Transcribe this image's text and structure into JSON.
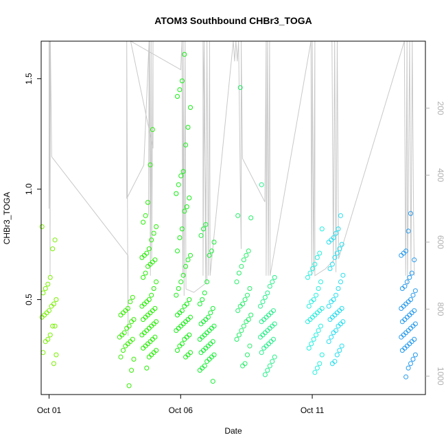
{
  "chart_data": {
    "type": "scatter",
    "title": "ATOM3 Southbound CHBr3_TOGA",
    "xlabel": "Date",
    "ylabel": "CHBr3_TOGA",
    "x_ticks": [
      "Oct 01",
      "Oct 06",
      "Oct 11"
    ],
    "x_tick_days": [
      1,
      6,
      11
    ],
    "xlim": [
      0.7,
      15.3
    ],
    "y_ticks": [
      "0.5",
      "1.0",
      "1.5"
    ],
    "y_tick_values": [
      0.5,
      1.0,
      1.5
    ],
    "ylim": [
      0.07,
      1.67
    ],
    "y2_ticks": [
      "200",
      "400",
      "600",
      "800",
      "1000"
    ],
    "y2_tick_values": [
      200,
      400,
      600,
      800,
      1000
    ],
    "y2lim": [
      1055,
      0
    ],
    "y2_tick_color": "#b0b0b0",
    "pressure_line_color": "#c8c8c8",
    "grid": false,
    "legend": "none",
    "point_groups": [
      {
        "color": "#77f000",
        "day": 1.0,
        "values": [
          0.83,
          0.77,
          0.73,
          0.6,
          0.57,
          0.55,
          0.53,
          0.5,
          0.48,
          0.47,
          0.45,
          0.44,
          0.43,
          0.42,
          0.38,
          0.38,
          0.34,
          0.32,
          0.31,
          0.26,
          0.25,
          0.21
        ]
      },
      {
        "color": "#33ee00",
        "day": 3.95,
        "values": [
          0.51,
          0.49,
          0.46,
          0.45,
          0.44,
          0.43,
          0.41,
          0.4,
          0.38,
          0.37,
          0.35,
          0.34,
          0.33,
          0.32,
          0.31,
          0.3,
          0.29,
          0.27,
          0.24,
          0.23,
          0.18,
          0.11
        ]
      },
      {
        "color": "#22ee00",
        "day": 4.8,
        "values": [
          1.27,
          1.11,
          0.94,
          0.88,
          0.85,
          0.83,
          0.8,
          0.77,
          0.73,
          0.71,
          0.7,
          0.69,
          0.68,
          0.67,
          0.66,
          0.65,
          0.62,
          0.6,
          0.58,
          0.55,
          0.52,
          0.5,
          0.49,
          0.48,
          0.47,
          0.46,
          0.45,
          0.44,
          0.43,
          0.42,
          0.41,
          0.4,
          0.39,
          0.38,
          0.37,
          0.36,
          0.35,
          0.34,
          0.33,
          0.32,
          0.31,
          0.3,
          0.29,
          0.28,
          0.27,
          0.26,
          0.25,
          0.24,
          0.19
        ]
      },
      {
        "color": "#11ee10",
        "day": 6.1,
        "values": [
          1.61,
          1.49,
          1.45,
          1.42,
          1.37,
          1.28,
          1.2,
          1.08,
          1.06,
          1.02,
          0.98,
          0.96,
          0.92,
          0.9,
          0.82,
          0.78,
          0.72,
          0.7,
          0.68,
          0.65,
          0.61,
          0.58,
          0.55,
          0.52,
          0.5,
          0.48,
          0.47,
          0.45,
          0.44,
          0.43,
          0.42,
          0.41,
          0.4,
          0.39,
          0.38,
          0.37,
          0.36,
          0.34,
          0.33,
          0.32,
          0.3,
          0.29,
          0.27,
          0.26,
          0.25,
          0.24
        ]
      },
      {
        "color": "#11ee30",
        "day": 7.0,
        "values": [
          0.84,
          0.82,
          0.79,
          0.76,
          0.72,
          0.7,
          0.58,
          0.53,
          0.5,
          0.48,
          0.46,
          0.44,
          0.42,
          0.41,
          0.4,
          0.39,
          0.38,
          0.37,
          0.36,
          0.35,
          0.34,
          0.33,
          0.32,
          0.31,
          0.3,
          0.29,
          0.28,
          0.27,
          0.26,
          0.25,
          0.24,
          0.23,
          0.22,
          0.2,
          0.19,
          0.18,
          0.13
        ]
      },
      {
        "color": "#22ee66",
        "day": 8.4,
        "values": [
          1.46,
          0.88,
          0.87,
          0.72,
          0.7,
          0.68,
          0.65,
          0.62,
          0.58,
          0.55,
          0.52,
          0.5,
          0.48,
          0.47,
          0.45,
          0.43,
          0.41,
          0.4,
          0.38,
          0.36,
          0.34,
          0.32,
          0.29,
          0.25,
          0.21,
          0.2
        ]
      },
      {
        "color": "#22ee88",
        "day": 9.3,
        "values": [
          1.02,
          0.6,
          0.58,
          0.56,
          0.53,
          0.51,
          0.49,
          0.47,
          0.45,
          0.44,
          0.43,
          0.42,
          0.41,
          0.4,
          0.39,
          0.38,
          0.37,
          0.36,
          0.35,
          0.34,
          0.33,
          0.32,
          0.31,
          0.3,
          0.29,
          0.28,
          0.26,
          0.24,
          0.22,
          0.2,
          0.18,
          0.16
        ]
      },
      {
        "color": "#22eedd",
        "day": 11.1,
        "values": [
          0.82,
          0.71,
          0.69,
          0.66,
          0.64,
          0.62,
          0.6,
          0.58,
          0.55,
          0.52,
          0.5,
          0.49,
          0.47,
          0.46,
          0.45,
          0.44,
          0.43,
          0.42,
          0.41,
          0.4,
          0.38,
          0.36,
          0.34,
          0.32,
          0.3,
          0.28,
          0.25,
          0.21,
          0.19,
          0.17
        ]
      },
      {
        "color": "#22ddee",
        "day": 11.9,
        "values": [
          0.88,
          0.82,
          0.8,
          0.78,
          0.77,
          0.76,
          0.75,
          0.73,
          0.71,
          0.69,
          0.66,
          0.64,
          0.61,
          0.58,
          0.55,
          0.52,
          0.5,
          0.49,
          0.47,
          0.46,
          0.45,
          0.44,
          0.43,
          0.42,
          0.41,
          0.4,
          0.39,
          0.38,
          0.36,
          0.35,
          0.33,
          0.31,
          0.29,
          0.27,
          0.25,
          0.22,
          0.21
        ]
      },
      {
        "color": "#2299ee",
        "day": 14.65,
        "values": [
          0.89,
          0.81,
          0.72,
          0.71,
          0.7,
          0.68,
          0.62,
          0.6,
          0.58,
          0.56,
          0.55,
          0.54,
          0.52,
          0.5,
          0.49,
          0.48,
          0.47,
          0.46,
          0.45,
          0.44,
          0.43,
          0.42,
          0.41,
          0.4,
          0.39,
          0.38,
          0.37,
          0.36,
          0.35,
          0.34,
          0.33,
          0.32,
          0.31,
          0.3,
          0.29,
          0.28,
          0.27,
          0.25,
          0.23,
          0.21,
          0.19,
          0.15
        ]
      }
    ],
    "pressure_series": [
      {
        "d": 1.0,
        "p": 0
      },
      {
        "d": 1.0,
        "p": 500
      },
      {
        "d": 1.02,
        "p": 0
      },
      {
        "d": 1.04,
        "p": 700
      },
      {
        "d": 1.05,
        "p": 0
      },
      {
        "d": 1.1,
        "p": 345
      },
      {
        "d": 4.0,
        "p": 640
      },
      {
        "d": 4.0,
        "p": 880
      },
      {
        "d": 3.95,
        "p": 0
      },
      {
        "d": 3.95,
        "p": 470
      },
      {
        "d": 4.6,
        "p": 370
      },
      {
        "d": 4.8,
        "p": 0
      },
      {
        "d": 4.78,
        "p": 520
      },
      {
        "d": 4.82,
        "p": 0
      },
      {
        "d": 4.85,
        "p": 700
      },
      {
        "d": 4.88,
        "p": 0
      },
      {
        "d": 4.9,
        "p": 650
      },
      {
        "d": 4.95,
        "p": 0
      },
      {
        "d": 4.95,
        "p": 320
      },
      {
        "d": 4.1,
        "p": 0
      },
      {
        "d": 6.0,
        "p": 85
      },
      {
        "d": 6.05,
        "p": 0
      },
      {
        "d": 6.08,
        "p": 700
      },
      {
        "d": 6.1,
        "p": 0
      },
      {
        "d": 6.13,
        "p": 760
      },
      {
        "d": 6.17,
        "p": 0
      },
      {
        "d": 6.2,
        "p": 740
      },
      {
        "d": 6.5,
        "p": 750
      },
      {
        "d": 7.0,
        "p": 720
      },
      {
        "d": 6.85,
        "p": 0
      },
      {
        "d": 6.85,
        "p": 155
      },
      {
        "d": 6.85,
        "p": 700
      },
      {
        "d": 6.9,
        "p": 0
      },
      {
        "d": 6.95,
        "p": 720
      },
      {
        "d": 7.0,
        "p": 0
      },
      {
        "d": 7.05,
        "p": 700
      },
      {
        "d": 7.1,
        "p": 0
      },
      {
        "d": 7.12,
        "p": 700
      },
      {
        "d": 8.0,
        "p": 0
      },
      {
        "d": 8.05,
        "p": 60
      },
      {
        "d": 8.1,
        "p": 0
      },
      {
        "d": 8.15,
        "p": 60
      },
      {
        "d": 8.2,
        "p": 0
      },
      {
        "d": 8.25,
        "p": 320
      },
      {
        "d": 8.3,
        "p": 620
      },
      {
        "d": 8.3,
        "p": 0
      },
      {
        "d": 8.35,
        "p": 350
      },
      {
        "d": 9.2,
        "p": 480
      },
      {
        "d": 9.25,
        "p": 0
      },
      {
        "d": 9.25,
        "p": 700
      },
      {
        "d": 9.3,
        "p": 0
      },
      {
        "d": 9.33,
        "p": 700
      },
      {
        "d": 9.38,
        "p": 0
      },
      {
        "d": 9.4,
        "p": 700
      },
      {
        "d": 10.95,
        "p": 0
      },
      {
        "d": 10.98,
        "p": 700
      },
      {
        "d": 11.0,
        "p": 0
      },
      {
        "d": 11.05,
        "p": 690
      },
      {
        "d": 11.1,
        "p": 0
      },
      {
        "d": 11.1,
        "p": 700
      },
      {
        "d": 11.5,
        "p": 680
      },
      {
        "d": 11.8,
        "p": 655
      },
      {
        "d": 11.75,
        "p": 0
      },
      {
        "d": 11.8,
        "p": 660
      },
      {
        "d": 11.85,
        "p": 0
      },
      {
        "d": 11.9,
        "p": 690
      },
      {
        "d": 11.95,
        "p": 0
      },
      {
        "d": 12.0,
        "p": 650
      },
      {
        "d": 14.5,
        "p": 0
      },
      {
        "d": 14.55,
        "p": 700
      },
      {
        "d": 14.6,
        "p": 0
      },
      {
        "d": 14.62,
        "p": 730
      },
      {
        "d": 14.7,
        "p": 0
      },
      {
        "d": 14.75,
        "p": 700
      },
      {
        "d": 14.8,
        "p": 0
      },
      {
        "d": 14.85,
        "p": 520
      },
      {
        "d": 14.88,
        "p": 700
      }
    ]
  }
}
